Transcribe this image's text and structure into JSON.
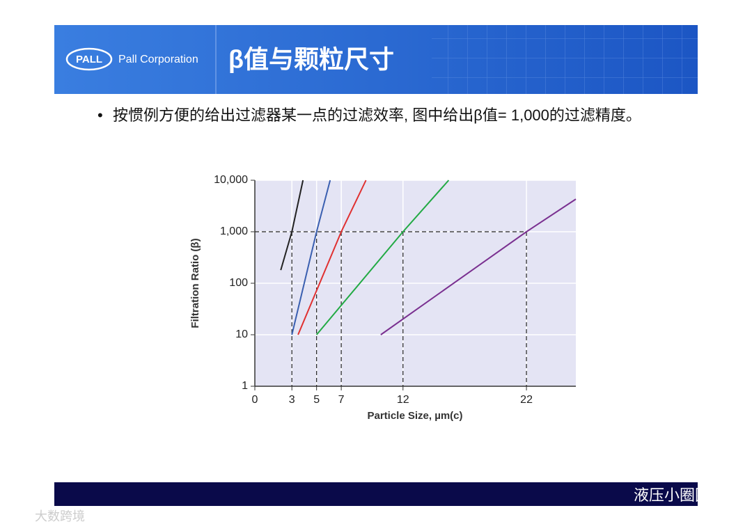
{
  "header": {
    "logo": "PALL",
    "company": "Pall Corporation",
    "title": "β值与颗粒尺寸"
  },
  "bullet": "按惯例方便的给出过滤器某一点的过滤效率, 图中给出β值= 1,000的过滤精度。",
  "watermark": {
    "right": "液压小圈圈",
    "left": "大数跨境"
  },
  "chart_data": {
    "type": "line",
    "y_label": "Filtration Ratio (β)",
    "x_label": "Particle Size, µm(c)",
    "yscale": "log",
    "grid": true,
    "xlim": [
      0,
      26
    ],
    "xticks": [
      0,
      3,
      5,
      7,
      12,
      22
    ],
    "ylim": [
      1,
      10000
    ],
    "yticks": [
      1,
      10,
      100,
      {
        "value": 1000,
        "label": "1,000"
      },
      {
        "value": 10000,
        "label": "10,000"
      }
    ],
    "reference_value": 1000,
    "series": [
      {
        "color": "#222222",
        "x": [
          2.1,
          3,
          3.9
        ],
        "values": [
          180,
          1000,
          10000
        ]
      },
      {
        "color": "#3a5fb0",
        "x": [
          3,
          5,
          6.1
        ],
        "values": [
          10,
          1000,
          10000
        ]
      },
      {
        "color": "#e03030",
        "x": [
          3.5,
          7,
          9
        ],
        "values": [
          10,
          1000,
          10000
        ]
      },
      {
        "color": "#22aa44",
        "x": [
          5,
          12,
          15.7
        ],
        "values": [
          10,
          1000,
          10000
        ]
      },
      {
        "color": "#7a3090",
        "x": [
          10.2,
          22,
          26
        ],
        "values": [
          10,
          1000,
          4300
        ]
      }
    ]
  }
}
